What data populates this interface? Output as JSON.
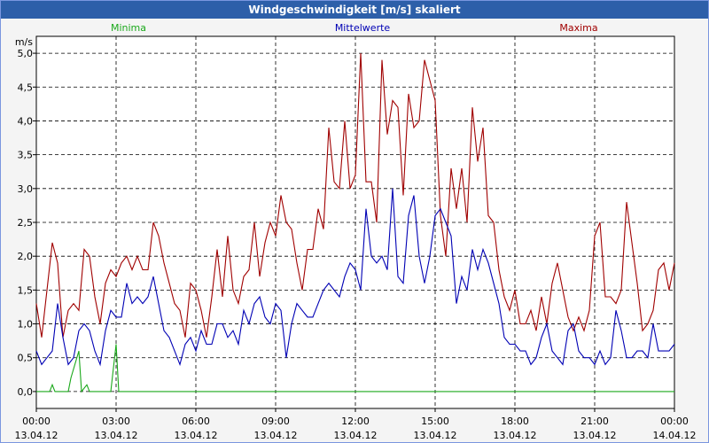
{
  "window": {
    "title": "Windgeschwindigkeit [m/s] skaliert"
  },
  "colors": {
    "title_bar": "#2d5fa9",
    "minima": "#1aa81a",
    "mittel": "#0000b4",
    "maxima": "#a00000",
    "grid": "#000000"
  },
  "chart_data": {
    "type": "line",
    "title": "Windgeschwindigkeit [m/s] skaliert",
    "ylabel": "m/s",
    "xlabel": "",
    "ylim": [
      -0.25,
      5.25
    ],
    "yticks": [
      0.0,
      0.5,
      1.0,
      1.5,
      2.0,
      2.5,
      3.0,
      3.5,
      4.0,
      4.5,
      5.0
    ],
    "ytick_labels": [
      "0,0",
      "0,5",
      "1,0",
      "1,5",
      "2,0",
      "2,5",
      "3,0",
      "3,5",
      "4,0",
      "4,5",
      "5,0"
    ],
    "xlim": [
      0,
      24
    ],
    "xticks": [
      {
        "x": 0,
        "time": "00:00",
        "date": "13.04.12"
      },
      {
        "x": 3,
        "time": "03:00",
        "date": "13.04.12"
      },
      {
        "x": 6,
        "time": "06:00",
        "date": "13.04.12"
      },
      {
        "x": 9,
        "time": "09:00",
        "date": "13.04.12"
      },
      {
        "x": 12,
        "time": "12:00",
        "date": "13.04.12"
      },
      {
        "x": 15,
        "time": "15:00",
        "date": "13.04.12"
      },
      {
        "x": 18,
        "time": "18:00",
        "date": "13.04.12"
      },
      {
        "x": 21,
        "time": "21:00",
        "date": "13.04.12"
      },
      {
        "x": 24,
        "time": "00:00",
        "date": "14.04.12"
      }
    ],
    "grid": true,
    "legend": "top",
    "series": [
      {
        "name": "Minima",
        "color": "#1aa81a",
        "x": [
          0,
          0.5,
          0.6,
          0.7,
          1.0,
          1.2,
          1.3,
          1.6,
          1.7,
          1.9,
          2.0,
          2.4,
          2.5,
          2.6,
          2.7,
          2.8,
          3.0,
          3.1,
          3.2,
          3.4,
          3.5,
          3.6,
          3.8,
          4.0,
          4.1,
          4.2,
          4.5,
          4.6,
          4.9,
          5.0,
          5.1,
          5.2,
          5.3,
          5.4,
          5.5,
          5.6,
          6.0,
          6.2,
          6.3,
          6.4,
          6.6,
          6.7,
          6.9,
          7.0,
          7.3,
          7.6,
          7.8,
          7.9,
          8.0,
          8.2,
          8.4,
          8.6,
          9.0,
          9.2,
          9.4,
          9.6,
          9.8,
          10.0,
          10.2,
          10.4,
          10.6,
          10.8,
          11.0,
          11.3,
          11.6,
          12.0,
          12.3,
          12.4,
          12.6,
          12.9,
          13.0,
          13.1,
          13.2,
          13.3,
          13.4,
          13.5,
          13.7,
          14.0,
          14.2,
          14.4,
          14.6,
          14.7,
          14.8,
          15.0,
          15.2,
          15.3,
          15.4,
          15.6,
          15.8,
          16.0,
          16.2,
          16.3,
          16.6,
          16.8,
          17.0,
          17.2,
          17.4,
          17.6,
          17.8,
          17.9,
          18.0,
          18.2,
          18.4,
          18.6,
          18.8,
          19.0,
          19.2,
          19.4,
          19.6,
          19.8,
          20.0,
          20.2,
          20.4,
          20.6,
          20.8,
          21.0,
          21.2,
          21.4,
          21.6,
          21.8,
          22.0,
          22.2,
          22.4,
          22.6,
          22.8,
          23.0,
          23.2,
          23.4,
          23.6,
          23.8,
          24.0
        ],
        "y": [
          0.0,
          0.0,
          0.1,
          0.0,
          0.0,
          0.0,
          0.2,
          0.6,
          0.0,
          0.1,
          0.0,
          0.0,
          0.0,
          0.0,
          0.0,
          0.0,
          0.7,
          0.0,
          0.0,
          0.0,
          0.0,
          0.0,
          0.0,
          0.0,
          0.0,
          0.0,
          0.0,
          0.0,
          0.0,
          0.0,
          0.0,
          0.0,
          0.0,
          0.0,
          0.0,
          0.0,
          0.0,
          0.0,
          0.0,
          0.0,
          0.0,
          0.0,
          0.0,
          0.0,
          0.0,
          0.0,
          0.0,
          0.0,
          0.0,
          0.0,
          0.0,
          0.0,
          0.0,
          0.0,
          0.0,
          0.0,
          0.0,
          0.0,
          0.0,
          0.0,
          0.0,
          0.0,
          0.0,
          0.0,
          0.0,
          0.0,
          0.0,
          0.0,
          0.0,
          0.0,
          0.0,
          0.0,
          0.0,
          0.0,
          0.0,
          0.0,
          0.0,
          0.0,
          0.0,
          0.0,
          0.0,
          0.0,
          0.0,
          0.0,
          0.0,
          0.0,
          0.0,
          0.0,
          0.0,
          0.0,
          0.0,
          0.0,
          0.0,
          0.0,
          0.0,
          0.0,
          0.0,
          0.0,
          0.0,
          0.0,
          0.0,
          0.0,
          0.0,
          0.0,
          0.0,
          0.0,
          0.0,
          0.0,
          0.0,
          0.0,
          0.0,
          0.0,
          0.0,
          0.0,
          0.0,
          0.0,
          0.0,
          0.0,
          0.0,
          0.0,
          0.0,
          0.0,
          0.0,
          0.0,
          0.0,
          0.0,
          0.0,
          0.0,
          0.0,
          0.0,
          0.0
        ]
      },
      {
        "name": "Mittelwerte",
        "color": "#0000b4",
        "x": [
          0,
          0.2,
          0.4,
          0.6,
          0.8,
          1.0,
          1.2,
          1.4,
          1.6,
          1.8,
          2.0,
          2.2,
          2.4,
          2.6,
          2.8,
          3.0,
          3.2,
          3.4,
          3.6,
          3.8,
          4.0,
          4.2,
          4.4,
          4.6,
          4.8,
          5.0,
          5.2,
          5.4,
          5.6,
          5.8,
          6.0,
          6.2,
          6.4,
          6.6,
          6.8,
          7.0,
          7.2,
          7.4,
          7.6,
          7.8,
          8.0,
          8.2,
          8.4,
          8.6,
          8.8,
          9.0,
          9.2,
          9.4,
          9.6,
          9.8,
          10.0,
          10.2,
          10.4,
          10.6,
          10.8,
          11.0,
          11.2,
          11.4,
          11.6,
          11.8,
          12.0,
          12.2,
          12.4,
          12.6,
          12.8,
          13.0,
          13.2,
          13.4,
          13.6,
          13.8,
          14.0,
          14.2,
          14.4,
          14.6,
          14.8,
          15.0,
          15.2,
          15.4,
          15.6,
          15.8,
          16.0,
          16.2,
          16.4,
          16.6,
          16.8,
          17.0,
          17.2,
          17.4,
          17.6,
          17.8,
          18.0,
          18.2,
          18.4,
          18.6,
          18.8,
          19.0,
          19.2,
          19.4,
          19.6,
          19.8,
          20.0,
          20.2,
          20.4,
          20.6,
          20.8,
          21.0,
          21.2,
          21.4,
          21.6,
          21.8,
          22.0,
          22.2,
          22.4,
          22.6,
          22.8,
          23.0,
          23.2,
          23.4,
          23.6,
          23.8,
          24.0
        ],
        "y": [
          0.6,
          0.4,
          0.5,
          0.6,
          1.3,
          0.8,
          0.4,
          0.5,
          0.9,
          1.0,
          0.9,
          0.6,
          0.4,
          0.9,
          1.2,
          1.1,
          1.1,
          1.6,
          1.3,
          1.4,
          1.3,
          1.4,
          1.7,
          1.3,
          0.9,
          0.8,
          0.6,
          0.4,
          0.7,
          0.8,
          0.6,
          0.9,
          0.7,
          0.7,
          1.0,
          1.0,
          0.8,
          0.9,
          0.7,
          1.2,
          1.0,
          1.3,
          1.4,
          1.1,
          1.0,
          1.3,
          1.2,
          0.5,
          1.0,
          1.3,
          1.2,
          1.1,
          1.1,
          1.3,
          1.5,
          1.6,
          1.5,
          1.4,
          1.7,
          1.9,
          1.8,
          1.5,
          2.7,
          2.0,
          1.9,
          2.0,
          1.8,
          3.0,
          1.7,
          1.6,
          2.6,
          2.9,
          2.0,
          1.6,
          2.0,
          2.6,
          2.7,
          2.5,
          2.3,
          1.3,
          1.7,
          1.5,
          2.1,
          1.8,
          2.1,
          1.9,
          1.6,
          1.3,
          0.8,
          0.7,
          0.7,
          0.6,
          0.6,
          0.4,
          0.5,
          0.8,
          1.0,
          0.6,
          0.5,
          0.4,
          0.9,
          1.0,
          0.6,
          0.5,
          0.5,
          0.4,
          0.6,
          0.4,
          0.5,
          1.2,
          0.9,
          0.5,
          0.5,
          0.6,
          0.6,
          0.5,
          1.0,
          0.6,
          0.6,
          0.6,
          0.7
        ],
        "note": ""
      },
      {
        "name": "Maxima",
        "color": "#a00000",
        "x": [
          0,
          0.2,
          0.4,
          0.6,
          0.8,
          1.0,
          1.2,
          1.4,
          1.6,
          1.8,
          2.0,
          2.2,
          2.4,
          2.6,
          2.8,
          3.0,
          3.2,
          3.4,
          3.6,
          3.8,
          4.0,
          4.2,
          4.4,
          4.6,
          4.8,
          5.0,
          5.2,
          5.4,
          5.6,
          5.8,
          6.0,
          6.2,
          6.4,
          6.6,
          6.8,
          7.0,
          7.2,
          7.4,
          7.6,
          7.8,
          8.0,
          8.2,
          8.4,
          8.6,
          8.8,
          9.0,
          9.2,
          9.4,
          9.6,
          9.8,
          10.0,
          10.2,
          10.4,
          10.6,
          10.8,
          11.0,
          11.2,
          11.4,
          11.6,
          11.8,
          12.0,
          12.2,
          12.4,
          12.6,
          12.8,
          13.0,
          13.2,
          13.4,
          13.6,
          13.8,
          14.0,
          14.2,
          14.4,
          14.6,
          14.8,
          15.0,
          15.2,
          15.4,
          15.6,
          15.8,
          16.0,
          16.2,
          16.4,
          16.6,
          16.8,
          17.0,
          17.2,
          17.4,
          17.6,
          17.8,
          18.0,
          18.2,
          18.4,
          18.6,
          18.8,
          19.0,
          19.2,
          19.4,
          19.6,
          19.8,
          20.0,
          20.2,
          20.4,
          20.6,
          20.8,
          21.0,
          21.2,
          21.4,
          21.6,
          21.8,
          22.0,
          22.2,
          22.4,
          22.6,
          22.8,
          23.0,
          23.2,
          23.4,
          23.6,
          23.8,
          24.0
        ],
        "y": [
          1.3,
          0.8,
          1.5,
          2.2,
          1.9,
          0.8,
          1.2,
          1.3,
          1.2,
          2.1,
          2.0,
          1.4,
          1.0,
          1.6,
          1.8,
          1.7,
          1.9,
          2.0,
          1.8,
          2.0,
          1.8,
          1.8,
          2.5,
          2.3,
          1.9,
          1.6,
          1.3,
          1.2,
          0.8,
          1.6,
          1.5,
          1.2,
          0.8,
          1.4,
          2.1,
          1.4,
          2.3,
          1.5,
          1.3,
          1.7,
          1.8,
          2.5,
          1.7,
          2.2,
          2.5,
          2.3,
          2.9,
          2.5,
          2.4,
          1.9,
          1.5,
          2.1,
          2.1,
          2.7,
          2.4,
          3.9,
          3.1,
          3.0,
          4.0,
          3.0,
          3.2,
          5.0,
          3.1,
          3.1,
          2.5,
          4.9,
          3.8,
          4.3,
          4.2,
          2.9,
          4.4,
          3.9,
          4.0,
          4.9,
          4.6,
          4.3,
          2.6,
          2.0,
          3.3,
          2.7,
          3.3,
          2.5,
          4.2,
          3.4,
          3.9,
          2.6,
          2.5,
          1.8,
          1.4,
          1.2,
          1.5,
          1.0,
          1.0,
          1.2,
          0.9,
          1.4,
          1.0,
          1.6,
          1.9,
          1.5,
          1.1,
          0.9,
          1.1,
          0.9,
          1.2,
          2.3,
          2.5,
          1.4,
          1.4,
          1.3,
          1.5,
          2.8,
          2.2,
          1.6,
          0.9,
          1.0,
          1.2,
          1.8,
          1.9,
          1.5,
          1.9
        ]
      }
    ]
  }
}
